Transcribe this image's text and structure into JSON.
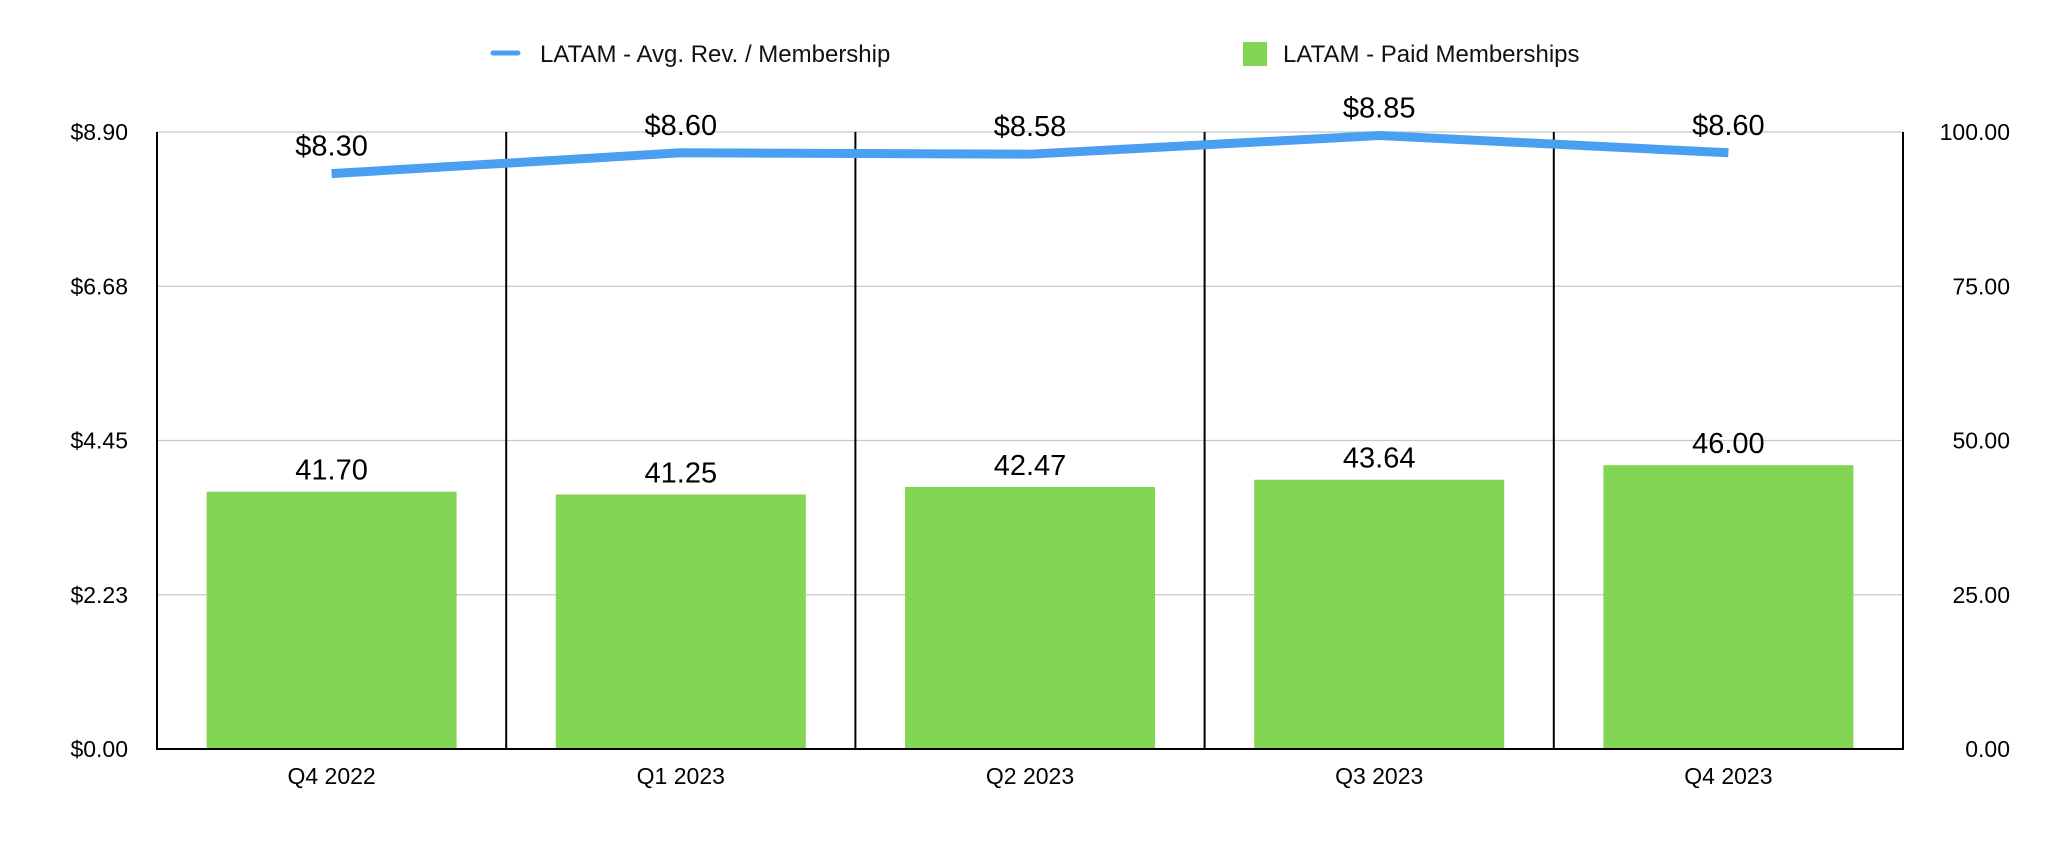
{
  "chart_data": {
    "type": "bar",
    "categories": [
      "Q4 2022",
      "Q1 2023",
      "Q2 2023",
      "Q3 2023",
      "Q4 2023"
    ],
    "series": [
      {
        "name": "LATAM - Paid Memberships",
        "kind": "bar",
        "axis": "right",
        "color": "#82d654",
        "values": [
          41.7,
          41.25,
          42.47,
          43.64,
          46.0
        ],
        "labels": [
          "41.70",
          "41.25",
          "42.47",
          "43.64",
          "46.00"
        ]
      },
      {
        "name": "LATAM - Avg. Rev. / Membership",
        "kind": "line",
        "axis": "left",
        "color": "#4a9ff0",
        "values": [
          8.3,
          8.6,
          8.58,
          8.85,
          8.6
        ],
        "labels": [
          "$8.30",
          "$8.60",
          "$8.58",
          "$8.85",
          "$8.60"
        ]
      }
    ],
    "y_left": {
      "ylim": [
        0,
        8.9
      ],
      "ticks": [
        0,
        2.225,
        4.45,
        6.675,
        8.9
      ],
      "tick_labels": [
        "$0.00",
        "$2.23",
        "$4.45",
        "$6.68",
        "$8.90"
      ]
    },
    "y_right": {
      "ylim": [
        0,
        100
      ],
      "ticks": [
        0,
        25,
        50,
        75,
        100
      ],
      "tick_labels": [
        "0.00",
        "25.00",
        "50.00",
        "75.00",
        "100.00"
      ]
    },
    "grid": true,
    "legend_position": "top"
  }
}
